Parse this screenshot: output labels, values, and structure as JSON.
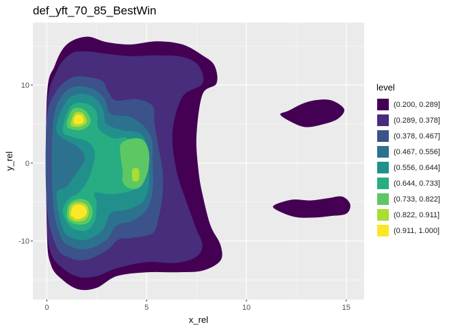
{
  "chart_data": {
    "type": "contour",
    "title": "def_yft_70_85_BestWin",
    "xlabel": "x_rel",
    "ylabel": "y_rel",
    "xlim": [
      -0.7,
      15.9
    ],
    "ylim": [
      -17.5,
      18.0
    ],
    "x_ticks": [
      0,
      5,
      10,
      15
    ],
    "y_ticks": [
      -10,
      0,
      10
    ],
    "grid": true,
    "legend_position": "right",
    "legend": {
      "title": "level",
      "levels": [
        {
          "label": "(0.200, 0.289]",
          "color": "#440154"
        },
        {
          "label": "(0.289, 0.378]",
          "color": "#472D7B"
        },
        {
          "label": "(0.378, 0.467]",
          "color": "#3B528B"
        },
        {
          "label": "(0.467, 0.556]",
          "color": "#2C728E"
        },
        {
          "label": "(0.556, 0.644]",
          "color": "#21908C"
        },
        {
          "label": "(0.644, 0.733]",
          "color": "#27AD81"
        },
        {
          "label": "(0.733, 0.822]",
          "color": "#5DC863"
        },
        {
          "label": "(0.822, 0.911]",
          "color": "#AADC32"
        },
        {
          "label": "(0.911, 1.000]",
          "color": "#FDE725"
        }
      ]
    },
    "regions": [
      {
        "level": 0,
        "points": [
          [
            0,
            8.3
          ],
          [
            0.4,
            12.5
          ],
          [
            1.0,
            15.2
          ],
          [
            2.0,
            16.2
          ],
          [
            3.0,
            15.5
          ],
          [
            4.2,
            15.2
          ],
          [
            5.5,
            15.6
          ],
          [
            6.8,
            15.2
          ],
          [
            7.8,
            13.8
          ],
          [
            8.4,
            12.5
          ],
          [
            8.5,
            10.2
          ],
          [
            7.8,
            8.8
          ],
          [
            7.5,
            3.5
          ],
          [
            7.6,
            -1.0
          ],
          [
            7.8,
            -4.0
          ],
          [
            8.2,
            -8.0
          ],
          [
            8.7,
            -10.5
          ],
          [
            8.7,
            -12.5
          ],
          [
            7.8,
            -13.8
          ],
          [
            6.5,
            -14.0
          ],
          [
            5.0,
            -14.0
          ],
          [
            3.5,
            -14.5
          ],
          [
            2.5,
            -16.0
          ],
          [
            1.6,
            -16.2
          ],
          [
            0.8,
            -15.0
          ],
          [
            0.2,
            -13.0
          ],
          [
            0,
            -8.3
          ]
        ]
      },
      {
        "level": 1,
        "points": [
          [
            0,
            7.0
          ],
          [
            0.5,
            11.8
          ],
          [
            1.2,
            14.0
          ],
          [
            2.0,
            14.3
          ],
          [
            3.0,
            14.0
          ],
          [
            4.2,
            13.7
          ],
          [
            5.5,
            13.8
          ],
          [
            6.8,
            13.6
          ],
          [
            7.6,
            12.5
          ],
          [
            7.8,
            10.2
          ],
          [
            6.8,
            8.5
          ],
          [
            6.3,
            4.0
          ],
          [
            6.5,
            -1.0
          ],
          [
            7.0,
            -5.0
          ],
          [
            7.5,
            -8.5
          ],
          [
            7.8,
            -10.5
          ],
          [
            7.5,
            -12.0
          ],
          [
            6.5,
            -12.8
          ],
          [
            5.0,
            -12.7
          ],
          [
            3.5,
            -13.5
          ],
          [
            2.5,
            -14.5
          ],
          [
            1.6,
            -14.6
          ],
          [
            0.8,
            -13.5
          ],
          [
            0.2,
            -11.5
          ],
          [
            0,
            -7.0
          ]
        ]
      },
      {
        "level": 2,
        "points": [
          [
            0,
            5.5
          ],
          [
            0.5,
            9.3
          ],
          [
            1.3,
            11.0
          ],
          [
            2.1,
            11.0
          ],
          [
            2.8,
            10.5
          ],
          [
            3.1,
            9.0
          ],
          [
            3.5,
            8.0
          ],
          [
            4.5,
            8.2
          ],
          [
            5.3,
            7.3
          ],
          [
            5.4,
            5.0
          ],
          [
            5.6,
            2.0
          ],
          [
            5.8,
            -1.0
          ],
          [
            5.8,
            -4.0
          ],
          [
            5.6,
            -7.0
          ],
          [
            5.3,
            -9.0
          ],
          [
            4.3,
            -9.6
          ],
          [
            3.6,
            -9.8
          ],
          [
            3.0,
            -11.2
          ],
          [
            2.0,
            -12.4
          ],
          [
            1.2,
            -12.2
          ],
          [
            0.5,
            -10.8
          ],
          [
            0,
            -5.5
          ]
        ]
      },
      {
        "level": 3,
        "points": [
          [
            0.3,
            4.8
          ],
          [
            0.7,
            8.4
          ],
          [
            1.4,
            9.8
          ],
          [
            2.3,
            9.5
          ],
          [
            2.9,
            8.2
          ],
          [
            3.2,
            6.3
          ],
          [
            4.3,
            5.8
          ],
          [
            5.2,
            3.5
          ],
          [
            5.3,
            0
          ],
          [
            5.3,
            -3.5
          ],
          [
            5.0,
            -6.0
          ],
          [
            4.3,
            -7.4
          ],
          [
            3.5,
            -8.0
          ],
          [
            3.0,
            -9.8
          ],
          [
            2.1,
            -11.0
          ],
          [
            1.3,
            -10.8
          ],
          [
            0.7,
            -9.5
          ],
          [
            0.3,
            -4.8
          ]
        ]
      },
      {
        "level": 4,
        "points": [
          [
            0.5,
            4.0
          ],
          [
            0.9,
            7.6
          ],
          [
            1.5,
            8.8
          ],
          [
            2.3,
            8.5
          ],
          [
            2.8,
            7.0
          ],
          [
            3.0,
            5.0
          ],
          [
            3.8,
            4.2
          ],
          [
            4.8,
            3.5
          ],
          [
            5.1,
            0
          ],
          [
            5.1,
            -3.0
          ],
          [
            4.8,
            -5.0
          ],
          [
            4.0,
            -6.0
          ],
          [
            3.2,
            -6.4
          ],
          [
            2.8,
            -8.6
          ],
          [
            2.0,
            -9.8
          ],
          [
            1.3,
            -9.6
          ],
          [
            0.8,
            -8.4
          ],
          [
            0.5,
            -4.0
          ],
          [
            1.0,
            -3.0
          ],
          [
            1.5,
            -1.2
          ],
          [
            1.9,
            0.5
          ],
          [
            1.6,
            2.0
          ]
        ]
      },
      {
        "level": 5,
        "points": [
          [
            0.8,
            4.2
          ],
          [
            1.1,
            6.9
          ],
          [
            1.5,
            7.7
          ],
          [
            2.1,
            7.5
          ],
          [
            2.5,
            6.4
          ],
          [
            2.6,
            4.4
          ],
          [
            3.3,
            3.2
          ],
          [
            4.0,
            3.2
          ],
          [
            4.8,
            2.0
          ],
          [
            4.9,
            -0.5
          ],
          [
            4.8,
            -2.6
          ],
          [
            4.2,
            -3.6
          ],
          [
            3.2,
            -4.0
          ],
          [
            2.4,
            -3.8
          ],
          [
            2.5,
            -5.2
          ],
          [
            2.4,
            -7.4
          ],
          [
            2.0,
            -8.6
          ],
          [
            1.4,
            -8.5
          ],
          [
            1.0,
            -7.6
          ],
          [
            0.8,
            -6.0
          ],
          [
            1.1,
            -4.6
          ],
          [
            1.6,
            -3.8
          ],
          [
            2.0,
            -2.5
          ],
          [
            2.3,
            -0.5
          ],
          [
            2.4,
            1.5
          ],
          [
            2.0,
            2.8
          ],
          [
            1.2,
            3.4
          ]
        ]
      },
      {
        "level": 6,
        "points": [
          [
            1.0,
            4.9
          ],
          [
            1.3,
            6.9
          ],
          [
            1.9,
            6.8
          ],
          [
            2.2,
            5.3
          ],
          [
            1.8,
            4.3
          ],
          [
            1.3,
            4.3
          ]
        ]
      },
      {
        "level": 6,
        "points": [
          [
            3.8,
            -1.0
          ],
          [
            3.7,
            0.8
          ],
          [
            3.7,
            2.4
          ],
          [
            4.2,
            3.1
          ],
          [
            4.8,
            3.0
          ],
          [
            5.1,
            1.6
          ],
          [
            5.1,
            -0.5
          ],
          [
            4.9,
            -2.2
          ],
          [
            4.6,
            -3.2
          ],
          [
            4.1,
            -3.2
          ],
          [
            3.8,
            -2.4
          ]
        ]
      },
      {
        "level": 6,
        "points": [
          [
            1.0,
            -6.9
          ],
          [
            1.1,
            -5.3
          ],
          [
            1.6,
            -4.6
          ],
          [
            2.1,
            -5.0
          ],
          [
            2.3,
            -6.3
          ],
          [
            2.1,
            -7.6
          ],
          [
            1.6,
            -7.9
          ],
          [
            1.2,
            -7.6
          ]
        ]
      },
      {
        "level": 7,
        "points": [
          [
            1.2,
            5.1
          ],
          [
            1.4,
            6.4
          ],
          [
            1.8,
            6.4
          ],
          [
            2.0,
            5.3
          ],
          [
            1.7,
            4.7
          ],
          [
            1.3,
            4.7
          ]
        ]
      },
      {
        "level": 7,
        "points": [
          [
            4.3,
            -2.2
          ],
          [
            4.3,
            -0.8
          ],
          [
            4.6,
            -0.8
          ],
          [
            4.6,
            -2.2
          ]
        ]
      },
      {
        "level": 7,
        "points": [
          [
            1.1,
            -6.6
          ],
          [
            1.2,
            -5.4
          ],
          [
            1.6,
            -5.0
          ],
          [
            2.0,
            -5.4
          ],
          [
            2.1,
            -6.5
          ],
          [
            1.9,
            -7.3
          ],
          [
            1.5,
            -7.5
          ],
          [
            1.2,
            -7.2
          ]
        ]
      },
      {
        "level": 8,
        "points": [
          [
            1.35,
            5.1
          ],
          [
            1.45,
            6.1
          ],
          [
            1.75,
            6.1
          ],
          [
            1.85,
            5.4
          ],
          [
            1.7,
            5.0
          ]
        ]
      },
      {
        "level": 8,
        "points": [
          [
            1.2,
            -6.6
          ],
          [
            1.3,
            -5.6
          ],
          [
            1.6,
            -5.3
          ],
          [
            1.9,
            -5.6
          ],
          [
            2.0,
            -6.4
          ],
          [
            1.8,
            -7.0
          ],
          [
            1.5,
            -7.2
          ],
          [
            1.3,
            -6.9
          ]
        ]
      },
      {
        "level": 0,
        "points": [
          [
            11.7,
            6.2
          ],
          [
            12.1,
            6.7
          ],
          [
            12.9,
            7.7
          ],
          [
            13.6,
            8.1
          ],
          [
            14.3,
            8.0
          ],
          [
            14.9,
            6.9
          ],
          [
            14.6,
            5.7
          ],
          [
            13.9,
            5.0
          ],
          [
            13.0,
            4.6
          ],
          [
            12.3,
            5.2
          ]
        ]
      },
      {
        "level": 0,
        "points": [
          [
            11.4,
            -5.4
          ],
          [
            11.5,
            -6.0
          ],
          [
            12.4,
            -6.9
          ],
          [
            13.3,
            -7.0
          ],
          [
            14.2,
            -6.8
          ],
          [
            15.0,
            -6.5
          ],
          [
            15.2,
            -5.3
          ],
          [
            14.8,
            -4.3
          ],
          [
            14.1,
            -4.5
          ],
          [
            13.2,
            -4.8
          ],
          [
            12.3,
            -4.7
          ]
        ]
      }
    ]
  }
}
